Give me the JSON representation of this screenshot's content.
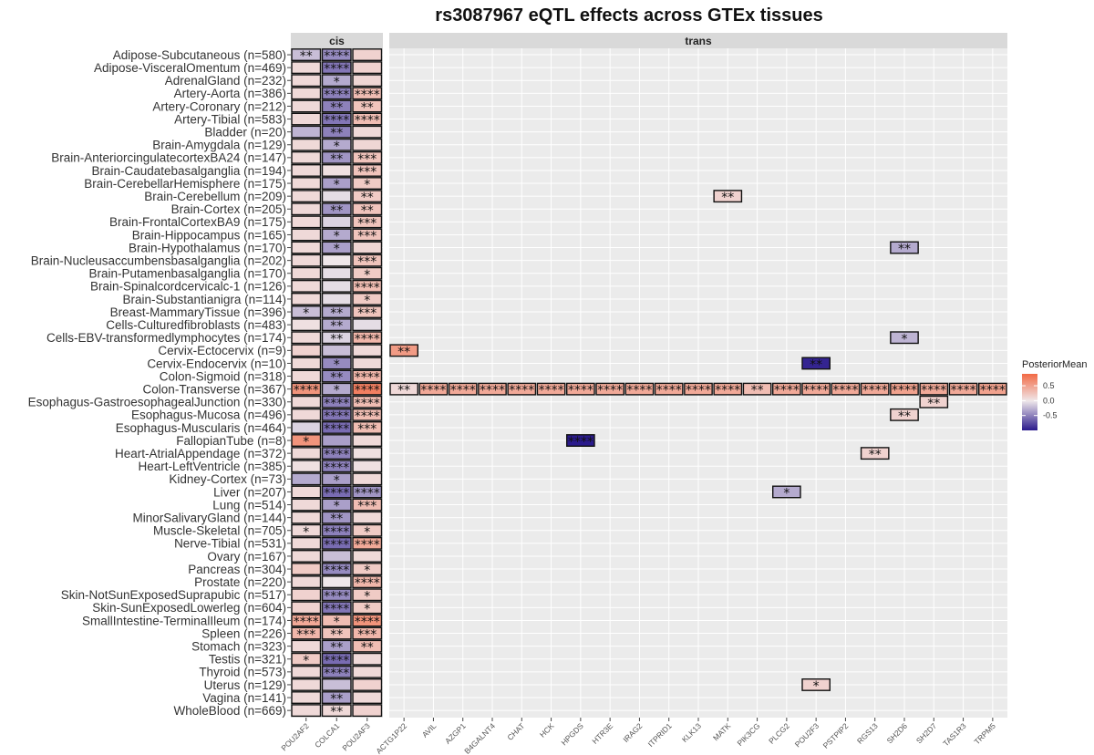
{
  "chart_data": {
    "type": "heatmap",
    "title": "rs3087967 eQTL effects across GTEx tissues",
    "facets": [
      "cis",
      "trans"
    ],
    "cis_genes": [
      "POU2AF2",
      "COLCA1",
      "POU2AF3"
    ],
    "trans_genes": [
      "ACTG1P22",
      "AVIL",
      "AZGP1",
      "B4GALNT4",
      "CHAT",
      "HCK",
      "HPGDS",
      "HTR3E",
      "IRAG2",
      "ITPRID1",
      "KLK13",
      "MATK",
      "PIK3CG",
      "PLCG2",
      "POU2F3",
      "PSTPIP2",
      "RGS13",
      "SH2D6",
      "SH2D7",
      "TAS1R3",
      "TRPM5"
    ],
    "tissues": [
      "Adipose-Subcutaneous (n=580)",
      "Adipose-VisceralOmentum (n=469)",
      "AdrenalGland (n=232)",
      "Artery-Aorta (n=386)",
      "Artery-Coronary (n=212)",
      "Artery-Tibial (n=583)",
      "Bladder (n=20)",
      "Brain-Amygdala (n=129)",
      "Brain-AnteriorcingulatecortexBA24 (n=147)",
      "Brain-Caudatebasalganglia (n=194)",
      "Brain-CerebellarHemisphere (n=175)",
      "Brain-Cerebellum (n=209)",
      "Brain-Cortex (n=205)",
      "Brain-FrontalCortexBA9 (n=175)",
      "Brain-Hippocampus (n=165)",
      "Brain-Hypothalamus (n=170)",
      "Brain-Nucleusaccumbensbasalganglia (n=202)",
      "Brain-Putamenbasalganglia (n=170)",
      "Brain-Spinalcordcervicalc-1 (n=126)",
      "Brain-Substantianigra (n=114)",
      "Breast-MammaryTissue (n=396)",
      "Cells-Culturedfibroblasts (n=483)",
      "Cells-EBV-transformedlymphocytes (n=174)",
      "Cervix-Ectocervix (n=9)",
      "Cervix-Endocervix (n=10)",
      "Colon-Sigmoid (n=318)",
      "Colon-Transverse (n=367)",
      "Esophagus-GastroesophagealJunction (n=330)",
      "Esophagus-Mucosa (n=496)",
      "Esophagus-Muscularis (n=464)",
      "FallopianTube (n=8)",
      "Heart-AtrialAppendage (n=372)",
      "Heart-LeftVentricle (n=385)",
      "Kidney-Cortex (n=73)",
      "Liver (n=207)",
      "Lung (n=514)",
      "MinorSalivaryGland (n=144)",
      "Muscle-Skeletal (n=705)",
      "Nerve-Tibial (n=531)",
      "Ovary (n=167)",
      "Pancreas (n=304)",
      "Prostate (n=220)",
      "Skin-NotSunExposedSuprapubic (n=517)",
      "Skin-SunExposedLowerleg (n=604)",
      "SmallIntestine-TerminalIleum (n=174)",
      "Spleen (n=226)",
      "Stomach (n=323)",
      "Testis (n=321)",
      "Thyroid (n=573)",
      "Uterus (n=129)",
      "Vagina (n=141)",
      "WholeBlood (n=669)"
    ],
    "cis_values": [
      [
        -0.2,
        -0.45,
        0.15
      ],
      [
        0.1,
        -0.55,
        0.15
      ],
      [
        0.1,
        -0.3,
        0.12
      ],
      [
        0.1,
        -0.5,
        0.3
      ],
      [
        0.1,
        -0.5,
        0.25
      ],
      [
        0.1,
        -0.55,
        0.3
      ],
      [
        -0.25,
        -0.5,
        0.1
      ],
      [
        0.1,
        -0.3,
        0.12
      ],
      [
        0.1,
        -0.4,
        0.25
      ],
      [
        0.1,
        0.05,
        0.25
      ],
      [
        0.1,
        -0.35,
        0.2
      ],
      [
        0.1,
        -0.05,
        0.2
      ],
      [
        0.1,
        -0.4,
        0.25
      ],
      [
        0.1,
        -0.1,
        0.25
      ],
      [
        0.1,
        -0.3,
        0.25
      ],
      [
        0.1,
        -0.35,
        0.12
      ],
      [
        0.1,
        0.0,
        0.25
      ],
      [
        0.1,
        -0.05,
        0.2
      ],
      [
        0.1,
        -0.05,
        0.3
      ],
      [
        0.1,
        -0.05,
        0.2
      ],
      [
        -0.2,
        -0.3,
        0.25
      ],
      [
        0.05,
        -0.3,
        -0.05
      ],
      [
        0.1,
        -0.1,
        0.35
      ],
      [
        0.15,
        -0.2,
        0.1
      ],
      [
        0.1,
        -0.45,
        0.1
      ],
      [
        0.1,
        -0.45,
        0.35
      ],
      [
        0.6,
        -0.3,
        0.75
      ],
      [
        0.1,
        -0.5,
        0.3
      ],
      [
        0.1,
        -0.55,
        0.3
      ],
      [
        -0.1,
        -0.6,
        0.3
      ],
      [
        0.6,
        -0.35,
        0.1
      ],
      [
        0.1,
        -0.5,
        0.05
      ],
      [
        0.05,
        -0.5,
        0.05
      ],
      [
        -0.3,
        -0.35,
        0.1
      ],
      [
        0.1,
        -0.6,
        -0.4
      ],
      [
        0.1,
        -0.35,
        0.3
      ],
      [
        0.1,
        -0.4,
        0.1
      ],
      [
        0.1,
        -0.5,
        0.2
      ],
      [
        0.1,
        -0.6,
        0.45
      ],
      [
        0.1,
        -0.2,
        0.1
      ],
      [
        0.2,
        -0.45,
        0.2
      ],
      [
        0.1,
        0.0,
        0.35
      ],
      [
        0.15,
        -0.45,
        0.2
      ],
      [
        0.15,
        -0.55,
        0.2
      ],
      [
        0.45,
        0.3,
        0.6
      ],
      [
        0.35,
        0.25,
        0.35
      ],
      [
        0.1,
        -0.35,
        0.3
      ],
      [
        0.2,
        -0.6,
        0.1
      ],
      [
        0.1,
        -0.5,
        0.1
      ],
      [
        0.1,
        -0.2,
        0.15
      ],
      [
        0.1,
        -0.35,
        0.1
      ],
      [
        0.1,
        0.1,
        0.15
      ]
    ],
    "cis_stars": [
      [
        "**",
        "****",
        ""
      ],
      [
        "",
        "****",
        ""
      ],
      [
        "",
        "*",
        ""
      ],
      [
        "",
        "****",
        "****"
      ],
      [
        "",
        "**",
        "**"
      ],
      [
        "",
        "****",
        "****"
      ],
      [
        "",
        "**",
        ""
      ],
      [
        "",
        "*",
        ""
      ],
      [
        "",
        "**",
        "***"
      ],
      [
        "",
        "",
        "***"
      ],
      [
        "",
        "*",
        "*"
      ],
      [
        "",
        "",
        "**"
      ],
      [
        "",
        "**",
        "**"
      ],
      [
        "",
        "",
        "***"
      ],
      [
        "",
        "*",
        "***"
      ],
      [
        "",
        "*",
        ""
      ],
      [
        "",
        "",
        "***"
      ],
      [
        "",
        "",
        "*"
      ],
      [
        "",
        "",
        "****"
      ],
      [
        "",
        "",
        "*"
      ],
      [
        "*",
        "**",
        "***"
      ],
      [
        "",
        "**",
        ""
      ],
      [
        "",
        "**",
        "****"
      ],
      [
        "",
        "",
        ""
      ],
      [
        "",
        "*",
        ""
      ],
      [
        "",
        "**",
        "****"
      ],
      [
        "****",
        "*",
        "****"
      ],
      [
        "",
        "****",
        "****"
      ],
      [
        "",
        "****",
        "****"
      ],
      [
        "",
        "****",
        "***"
      ],
      [
        "*",
        "",
        ""
      ],
      [
        "",
        "****",
        ""
      ],
      [
        "",
        "****",
        ""
      ],
      [
        "",
        "*",
        ""
      ],
      [
        "",
        "****",
        "****"
      ],
      [
        "",
        "*",
        "***"
      ],
      [
        "",
        "**",
        ""
      ],
      [
        "*",
        "****",
        "*"
      ],
      [
        "",
        "****",
        "****"
      ],
      [
        "",
        "",
        ""
      ],
      [
        "",
        "****",
        "*"
      ],
      [
        "",
        "",
        "****"
      ],
      [
        "",
        "****",
        "*"
      ],
      [
        "",
        "****",
        "*"
      ],
      [
        "****",
        "*",
        "****"
      ],
      [
        "***",
        "**",
        "***"
      ],
      [
        "",
        "**",
        "**"
      ],
      [
        "*",
        "****",
        ""
      ],
      [
        "",
        "****",
        ""
      ],
      [
        "",
        "",
        ""
      ],
      [
        "",
        "**",
        ""
      ],
      [
        "",
        "**",
        ""
      ]
    ],
    "trans_cells": [
      {
        "tissue": "Brain-Cerebellum (n=209)",
        "gene": "MATK",
        "value": 0.15,
        "stars": "**"
      },
      {
        "tissue": "Brain-Hypothalamus (n=170)",
        "gene": "SH2D6",
        "value": -0.3,
        "stars": "**"
      },
      {
        "tissue": "Cells-EBV-transformedlymphocytes (n=174)",
        "gene": "SH2D6",
        "value": -0.25,
        "stars": "*"
      },
      {
        "tissue": "Cervix-Ectocervix (n=9)",
        "gene": "ACTG1P22",
        "value": 0.55,
        "stars": "**"
      },
      {
        "tissue": "Cervix-Endocervix (n=10)",
        "gene": "POU2F3",
        "value": -0.95,
        "stars": "**"
      },
      {
        "tissue": "Colon-Transverse (n=367)",
        "gene": "ACTG1P22",
        "value": 0.1,
        "stars": "**"
      },
      {
        "tissue": "Colon-Transverse (n=367)",
        "gene": "AVIL",
        "value": 0.45,
        "stars": "****"
      },
      {
        "tissue": "Colon-Transverse (n=367)",
        "gene": "AZGP1",
        "value": 0.45,
        "stars": "****"
      },
      {
        "tissue": "Colon-Transverse (n=367)",
        "gene": "B4GALNT4",
        "value": 0.45,
        "stars": "****"
      },
      {
        "tissue": "Colon-Transverse (n=367)",
        "gene": "CHAT",
        "value": 0.45,
        "stars": "****"
      },
      {
        "tissue": "Colon-Transverse (n=367)",
        "gene": "HCK",
        "value": 0.45,
        "stars": "****"
      },
      {
        "tissue": "Colon-Transverse (n=367)",
        "gene": "HPGDS",
        "value": 0.45,
        "stars": "****"
      },
      {
        "tissue": "Colon-Transverse (n=367)",
        "gene": "HTR3E",
        "value": 0.45,
        "stars": "****"
      },
      {
        "tissue": "Colon-Transverse (n=367)",
        "gene": "IRAG2",
        "value": 0.45,
        "stars": "****"
      },
      {
        "tissue": "Colon-Transverse (n=367)",
        "gene": "ITPRID1",
        "value": 0.45,
        "stars": "****"
      },
      {
        "tissue": "Colon-Transverse (n=367)",
        "gene": "KLK13",
        "value": 0.45,
        "stars": "****"
      },
      {
        "tissue": "Colon-Transverse (n=367)",
        "gene": "MATK",
        "value": 0.45,
        "stars": "****"
      },
      {
        "tissue": "Colon-Transverse (n=367)",
        "gene": "PIK3CG",
        "value": 0.3,
        "stars": "**"
      },
      {
        "tissue": "Colon-Transverse (n=367)",
        "gene": "PLCG2",
        "value": 0.45,
        "stars": "****"
      },
      {
        "tissue": "Colon-Transverse (n=367)",
        "gene": "POU2F3",
        "value": 0.45,
        "stars": "****"
      },
      {
        "tissue": "Colon-Transverse (n=367)",
        "gene": "PSTPIP2",
        "value": 0.45,
        "stars": "****"
      },
      {
        "tissue": "Colon-Transverse (n=367)",
        "gene": "RGS13",
        "value": 0.45,
        "stars": "****"
      },
      {
        "tissue": "Colon-Transverse (n=367)",
        "gene": "SH2D6",
        "value": 0.5,
        "stars": "****"
      },
      {
        "tissue": "Colon-Transverse (n=367)",
        "gene": "SH2D7",
        "value": 0.45,
        "stars": "****"
      },
      {
        "tissue": "Colon-Transverse (n=367)",
        "gene": "TAS1R3",
        "value": 0.45,
        "stars": "****"
      },
      {
        "tissue": "Colon-Transverse (n=367)",
        "gene": "TRPM5",
        "value": 0.5,
        "stars": "****"
      },
      {
        "tissue": "Esophagus-GastroesophagealJunction (n=330)",
        "gene": "SH2D7",
        "value": 0.15,
        "stars": "**"
      },
      {
        "tissue": "Esophagus-Mucosa (n=496)",
        "gene": "SH2D6",
        "value": 0.15,
        "stars": "**"
      },
      {
        "tissue": "FallopianTube (n=8)",
        "gene": "HPGDS",
        "value": -1.0,
        "stars": "****"
      },
      {
        "tissue": "Heart-AtrialAppendage (n=372)",
        "gene": "RGS13",
        "value": 0.15,
        "stars": "**"
      },
      {
        "tissue": "Liver (n=207)",
        "gene": "PLCG2",
        "value": -0.3,
        "stars": "*"
      },
      {
        "tissue": "Uterus (n=129)",
        "gene": "POU2F3",
        "value": 0.15,
        "stars": "*"
      }
    ],
    "legend": {
      "title": "PosteriorMean",
      "ticks": [
        0.5,
        0.0,
        -0.5
      ],
      "tick_labels": [
        "0.5",
        "0.0",
        "-0.5"
      ],
      "range": [
        -1.0,
        0.9
      ]
    },
    "colors": {
      "low": "#2a1a8c",
      "mid": "#efe7ea",
      "high": "#f26a45",
      "panel": "#ebebeb",
      "grid": "#ffffff",
      "strip": "#d9d9d9"
    }
  }
}
